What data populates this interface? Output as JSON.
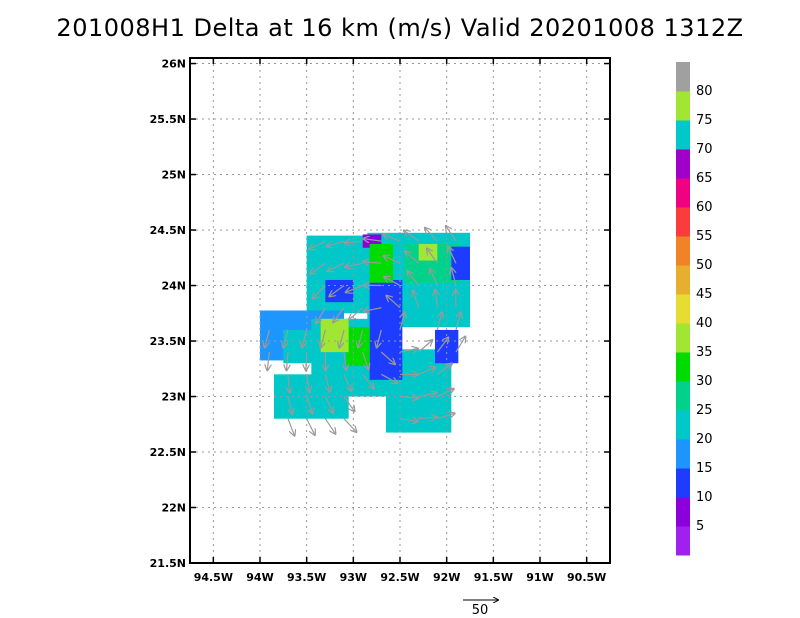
{
  "title": "201008H1 Delta at 16 km (m/s) Valid 20201008 1312Z",
  "chart_data": {
    "type": "heatmap",
    "subtype": "wind speed map with wind vectors",
    "title": "201008H1 Delta at 16 km (m/s) Valid 20201008 1312Z",
    "xlim": [
      -94.75,
      -90.25
    ],
    "ylim": [
      21.5,
      26.05
    ],
    "x_ticks": [
      -94.5,
      -94,
      -93.5,
      -93,
      -92.5,
      -92,
      -91.5,
      -91,
      -90.5
    ],
    "x_tick_labels": [
      "94.5W",
      "94W",
      "93.5W",
      "93W",
      "92.5W",
      "92W",
      "91.5W",
      "91W",
      "90.5W"
    ],
    "y_ticks": [
      21.5,
      22,
      22.5,
      23,
      23.5,
      24,
      24.5,
      25,
      25.5,
      26
    ],
    "y_tick_labels": [
      "21.5N",
      "22N",
      "22.5N",
      "23N",
      "23.5N",
      "24N",
      "24.5N",
      "25N",
      "25.5N",
      "26N"
    ],
    "grid": true,
    "colorbar": {
      "labels": [
        "5",
        "10",
        "15",
        "20",
        "25",
        "30",
        "35",
        "40",
        "45",
        "50",
        "55",
        "60",
        "65",
        "70",
        "75",
        "80"
      ],
      "bins": [
        {
          "lo": 0,
          "hi": 5,
          "color": "#a020f0"
        },
        {
          "lo": 5,
          "hi": 10,
          "color": "#8c00dc"
        },
        {
          "lo": 10,
          "hi": 15,
          "color": "#1e3cff"
        },
        {
          "lo": 15,
          "hi": 20,
          "color": "#1e96ff"
        },
        {
          "lo": 20,
          "hi": 25,
          "color": "#00c8c8"
        },
        {
          "lo": 25,
          "hi": 30,
          "color": "#00d28c"
        },
        {
          "lo": 30,
          "hi": 35,
          "color": "#00dc00"
        },
        {
          "lo": 35,
          "hi": 40,
          "color": "#a0e632"
        },
        {
          "lo": 40,
          "hi": 45,
          "color": "#e6dc32"
        },
        {
          "lo": 45,
          "hi": 50,
          "color": "#e6af2d"
        },
        {
          "lo": 50,
          "hi": 55,
          "color": "#f08228"
        },
        {
          "lo": 55,
          "hi": 60,
          "color": "#fa3c3c"
        },
        {
          "lo": 60,
          "hi": 65,
          "color": "#f00082"
        },
        {
          "lo": 65,
          "hi": 70,
          "color": "#a000c8"
        },
        {
          "lo": 70,
          "hi": 75,
          "color": "#00c8c8"
        },
        {
          "lo": 75,
          "hi": 80,
          "color": "#a0e632"
        },
        {
          "lo": 80,
          "hi": 85,
          "color": "#a0a0a0"
        }
      ]
    },
    "field_regions": [
      {
        "lon": -93.05,
        "lat": 24.1,
        "w": 0.9,
        "h": 0.7,
        "value": 23
      },
      {
        "lon": -92.3,
        "lat": 24.05,
        "w": 1.1,
        "h": 0.85,
        "value": 22
      },
      {
        "lon": -93.55,
        "lat": 23.55,
        "w": 0.9,
        "h": 0.45,
        "value": 18
      },
      {
        "lon": -93.0,
        "lat": 23.35,
        "w": 0.9,
        "h": 0.7,
        "value": 21
      },
      {
        "lon": -92.3,
        "lat": 23.05,
        "w": 0.7,
        "h": 0.75,
        "value": 20
      },
      {
        "lon": -93.45,
        "lat": 23.0,
        "w": 0.8,
        "h": 0.4,
        "value": 21
      },
      {
        "lon": -93.55,
        "lat": 23.45,
        "w": 0.4,
        "h": 0.3,
        "value": 24
      },
      {
        "lon": -92.15,
        "lat": 24.2,
        "w": 0.6,
        "h": 0.35,
        "value": 25
      },
      {
        "lon": -92.65,
        "lat": 23.6,
        "w": 0.35,
        "h": 0.9,
        "value": 13
      },
      {
        "lon": -92.95,
        "lat": 23.45,
        "w": 0.25,
        "h": 0.35,
        "value": 30
      },
      {
        "lon": -92.2,
        "lat": 24.3,
        "w": 0.2,
        "h": 0.15,
        "value": 35
      },
      {
        "lon": -92.8,
        "lat": 24.4,
        "w": 0.2,
        "h": 0.12,
        "value": 7
      },
      {
        "lon": -92.0,
        "lat": 23.45,
        "w": 0.25,
        "h": 0.3,
        "value": 12
      },
      {
        "lon": -91.85,
        "lat": 24.2,
        "w": 0.2,
        "h": 0.3,
        "value": 14
      },
      {
        "lon": -92.7,
        "lat": 24.2,
        "w": 0.25,
        "h": 0.35,
        "value": 32
      },
      {
        "lon": -93.15,
        "lat": 23.95,
        "w": 0.3,
        "h": 0.2,
        "value": 14
      },
      {
        "lon": -93.2,
        "lat": 23.55,
        "w": 0.3,
        "h": 0.3,
        "value": 38
      }
    ],
    "vector_scale_label": "50",
    "vector_scale_value": 50
  }
}
